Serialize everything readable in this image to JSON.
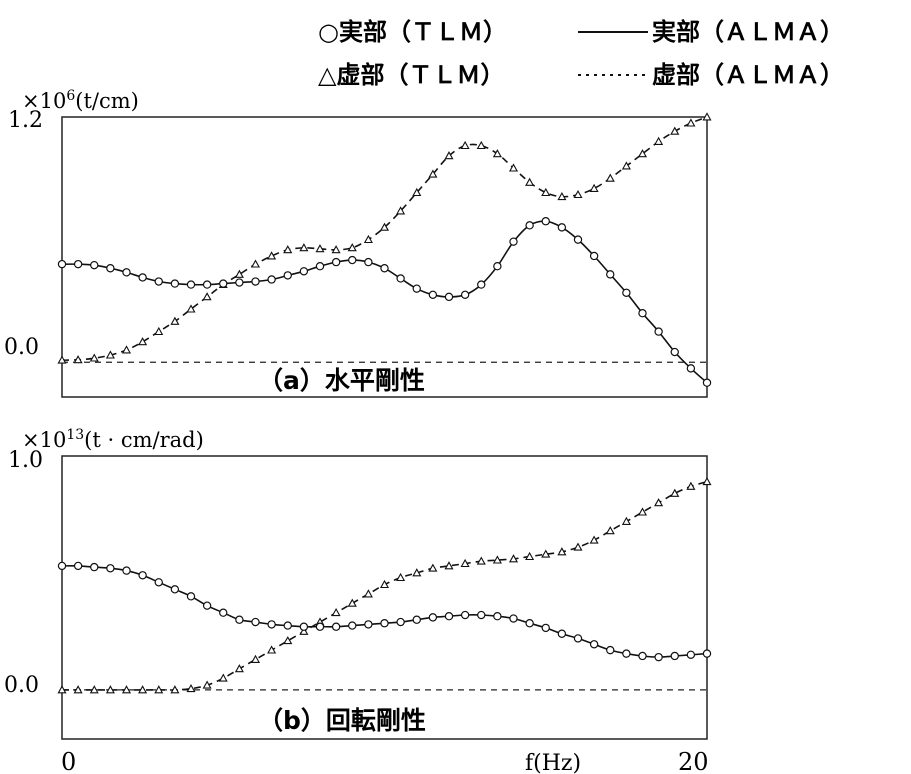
{
  "legend": {
    "real_tlm": "○実部（ＴＬＭ）",
    "real_alma": "実部（ＡＬＭＡ）",
    "imag_tlm": "△虚部（ＴＬＭ）",
    "imag_alma": "虚部（ＡＬＭＡ）"
  },
  "xlabel": "f(Hz)",
  "chart_data": [
    {
      "type": "line",
      "title": "（a）水平剛性",
      "yunit_prefix": "×10",
      "yunit_exp": "6",
      "yunit": "(t/cm)",
      "xlim": [
        0,
        20
      ],
      "ylim": [
        -0.17,
        1.2
      ],
      "yticks": [
        "1.2",
        "0.0"
      ],
      "ytick_values": [
        1.2,
        0.0
      ],
      "xticks": [],
      "zero_line": true,
      "series": [
        {
          "name": "実部",
          "marker": "circle",
          "line": "solid",
          "x": [
            0,
            0.5,
            1,
            1.5,
            2,
            2.5,
            3,
            3.5,
            4,
            4.5,
            5,
            5.5,
            6,
            6.5,
            7,
            7.5,
            8,
            8.5,
            9,
            9.5,
            10,
            10.5,
            11,
            11.5,
            12,
            12.5,
            13,
            13.5,
            14,
            14.5,
            15,
            15.5,
            16,
            16.5,
            17,
            17.5,
            18,
            18.5,
            19,
            19.5,
            20
          ],
          "values": [
            0.48,
            0.48,
            0.475,
            0.46,
            0.44,
            0.415,
            0.395,
            0.385,
            0.38,
            0.38,
            0.385,
            0.39,
            0.395,
            0.405,
            0.425,
            0.445,
            0.47,
            0.49,
            0.5,
            0.49,
            0.46,
            0.41,
            0.36,
            0.33,
            0.32,
            0.33,
            0.38,
            0.47,
            0.59,
            0.67,
            0.69,
            0.66,
            0.6,
            0.52,
            0.43,
            0.34,
            0.24,
            0.15,
            0.05,
            -0.03,
            -0.1
          ]
        },
        {
          "name": "虚部",
          "marker": "triangle",
          "line": "dashed",
          "x": [
            0,
            0.5,
            1,
            1.5,
            2,
            2.5,
            3,
            3.5,
            4,
            4.5,
            5,
            5.5,
            6,
            6.5,
            7,
            7.5,
            8,
            8.5,
            9,
            9.5,
            10,
            10.5,
            11,
            11.5,
            12,
            12.5,
            13,
            13.5,
            14,
            14.5,
            15,
            15.5,
            16,
            16.5,
            17,
            17.5,
            18,
            18.5,
            19,
            19.5,
            20
          ],
          "values": [
            0.01,
            0.012,
            0.02,
            0.035,
            0.06,
            0.1,
            0.15,
            0.2,
            0.26,
            0.32,
            0.38,
            0.43,
            0.48,
            0.52,
            0.55,
            0.56,
            0.555,
            0.55,
            0.56,
            0.6,
            0.66,
            0.74,
            0.83,
            0.92,
            1.01,
            1.06,
            1.06,
            1.02,
            0.95,
            0.88,
            0.83,
            0.81,
            0.82,
            0.85,
            0.9,
            0.96,
            1.02,
            1.08,
            1.13,
            1.17,
            1.2
          ]
        }
      ]
    },
    {
      "type": "line",
      "title": "（b）回転剛性",
      "yunit_prefix": "×10",
      "yunit_exp": "13",
      "yunit": "(t · cm/rad)",
      "xlim": [
        0,
        20
      ],
      "ylim": [
        -0.21,
        1.0
      ],
      "yticks": [
        "1.0",
        "0.0"
      ],
      "ytick_values": [
        1.0,
        0.0
      ],
      "xticks": [
        "0",
        "20"
      ],
      "xtick_values": [
        0,
        20
      ],
      "zero_line": true,
      "series": [
        {
          "name": "実部",
          "marker": "circle",
          "line": "solid",
          "x": [
            0,
            0.5,
            1,
            1.5,
            2,
            2.5,
            3,
            3.5,
            4,
            4.5,
            5,
            5.5,
            6,
            6.5,
            7,
            7.5,
            8,
            8.5,
            9,
            9.5,
            10,
            10.5,
            11,
            11.5,
            12,
            12.5,
            13,
            13.5,
            14,
            14.5,
            15,
            15.5,
            16,
            16.5,
            17,
            17.5,
            18,
            18.5,
            19,
            19.5,
            20
          ],
          "values": [
            0.53,
            0.53,
            0.525,
            0.52,
            0.51,
            0.49,
            0.46,
            0.43,
            0.4,
            0.36,
            0.33,
            0.3,
            0.29,
            0.28,
            0.275,
            0.27,
            0.27,
            0.27,
            0.275,
            0.28,
            0.285,
            0.29,
            0.3,
            0.31,
            0.315,
            0.32,
            0.32,
            0.315,
            0.305,
            0.285,
            0.265,
            0.24,
            0.22,
            0.195,
            0.17,
            0.155,
            0.145,
            0.14,
            0.145,
            0.15,
            0.155
          ]
        },
        {
          "name": "虚部",
          "marker": "triangle",
          "line": "dashed",
          "x": [
            0,
            0.5,
            1,
            1.5,
            2,
            2.5,
            3,
            3.5,
            4,
            4.5,
            5,
            5.5,
            6,
            6.5,
            7,
            7.5,
            8,
            8.5,
            9,
            9.5,
            10,
            10.5,
            11,
            11.5,
            12,
            12.5,
            13,
            13.5,
            14,
            14.5,
            15,
            15.5,
            16,
            16.5,
            17,
            17.5,
            18,
            18.5,
            19,
            19.5,
            20
          ],
          "values": [
            0.0,
            0.0,
            0.0,
            0.0,
            0.0,
            0.0,
            0.0,
            0.0,
            0.005,
            0.02,
            0.05,
            0.09,
            0.13,
            0.17,
            0.21,
            0.25,
            0.29,
            0.33,
            0.37,
            0.41,
            0.45,
            0.48,
            0.5,
            0.52,
            0.53,
            0.54,
            0.55,
            0.555,
            0.56,
            0.57,
            0.58,
            0.59,
            0.61,
            0.64,
            0.68,
            0.72,
            0.76,
            0.8,
            0.84,
            0.87,
            0.89
          ]
        }
      ]
    }
  ]
}
